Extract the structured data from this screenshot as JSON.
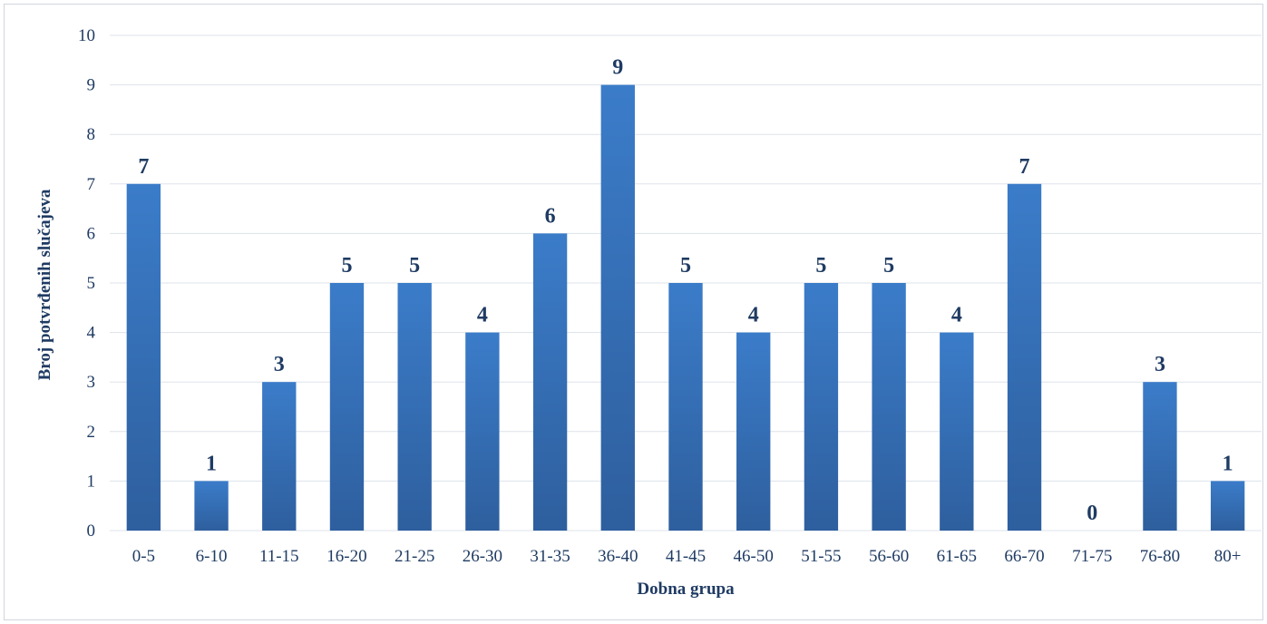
{
  "chart_data": {
    "type": "bar",
    "categories": [
      "0-5",
      "6-10",
      "11-15",
      "16-20",
      "21-25",
      "26-30",
      "31-35",
      "36-40",
      "41-45",
      "46-50",
      "51-55",
      "56-60",
      "61-65",
      "66-70",
      "71-75",
      "76-80",
      "80+"
    ],
    "values": [
      7,
      1,
      3,
      5,
      5,
      4,
      6,
      9,
      5,
      4,
      5,
      5,
      4,
      7,
      0,
      3,
      1
    ],
    "xlabel": "Dobna grupa",
    "ylabel": "Broj potvrđenih slučajeva",
    "ylim": [
      0,
      10
    ],
    "yticks": [
      "0",
      "1",
      "2",
      "3",
      "4",
      "5",
      "6",
      "7",
      "8",
      "9",
      "10"
    ],
    "grid": true,
    "legend": "none",
    "data_labels": true,
    "colors": {
      "bar_top": "#3b7cc9",
      "bar_bottom": "#2e5f9e",
      "text": "#1f3b63",
      "grid": "#dde3ea"
    }
  }
}
